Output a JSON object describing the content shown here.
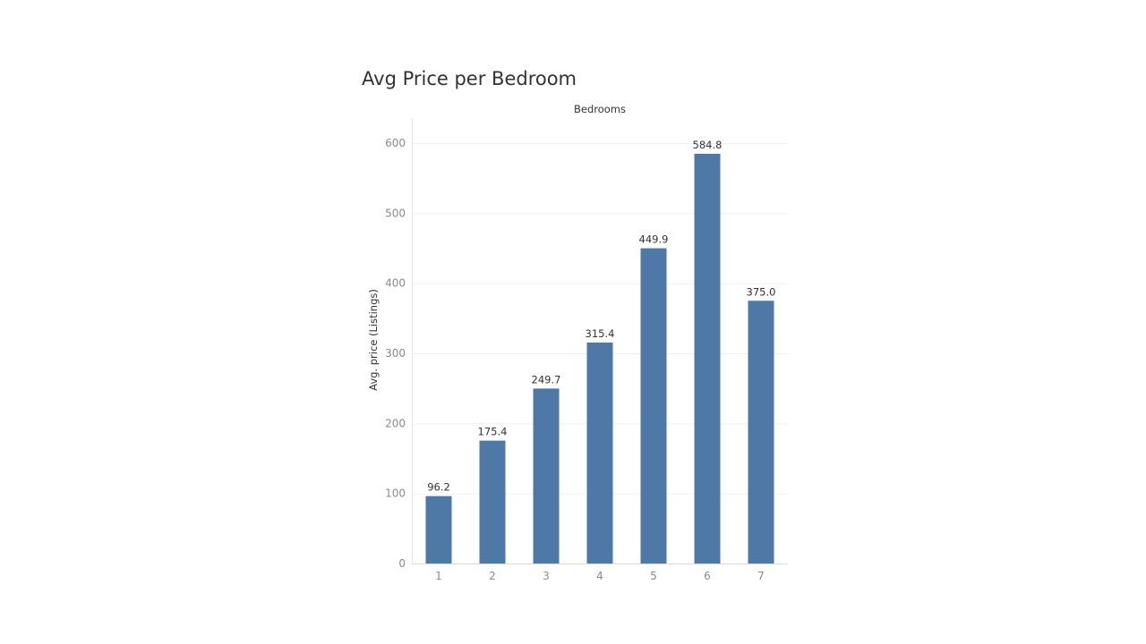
{
  "chart_data": {
    "type": "bar",
    "title": "Avg Price per Bedroom",
    "column_header": "Bedrooms",
    "ylabel": "Avg. price (Listings)",
    "xlabel": "",
    "categories": [
      "1",
      "2",
      "3",
      "4",
      "5",
      "6",
      "7"
    ],
    "values": [
      96.2,
      175.4,
      249.7,
      315.4,
      449.9,
      584.8,
      375.0
    ],
    "value_labels": [
      "96.2",
      "175.4",
      "249.7",
      "315.4",
      "449.9",
      "584.8",
      "375.0"
    ],
    "yticks": [
      "0",
      "100",
      "200",
      "300",
      "400",
      "500",
      "600"
    ],
    "ylim": [
      0,
      600
    ],
    "grid": true,
    "legend": "none",
    "bar_color": "#4e79a7"
  }
}
